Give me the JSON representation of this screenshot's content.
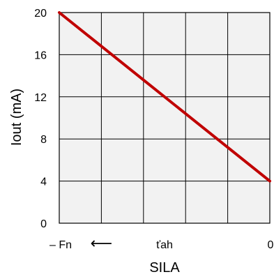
{
  "chart_data": {
    "type": "line",
    "title": "",
    "xlabel": "SILA",
    "ylabel": "Iout (mA)",
    "xlim": [
      0,
      5
    ],
    "ylim": [
      0,
      20
    ],
    "x_ticks": [
      0,
      1,
      2,
      3,
      4,
      5
    ],
    "y_ticks": [
      0,
      4,
      8,
      12,
      16,
      20
    ],
    "x_tick_labels": [
      {
        "x": 0,
        "label": "– Fn"
      },
      {
        "x": 1,
        "label": "⟵"
      },
      {
        "x": 2.5,
        "label": "ťah"
      },
      {
        "x": 5,
        "label": "0"
      }
    ],
    "grid": true,
    "series": [
      {
        "x": [
          0,
          5
        ],
        "y": [
          20,
          4
        ],
        "color": "#c00000"
      }
    ]
  },
  "colors": {
    "plot_background": "#f2f2f2",
    "grid": "#000000",
    "line": "#c00000"
  }
}
